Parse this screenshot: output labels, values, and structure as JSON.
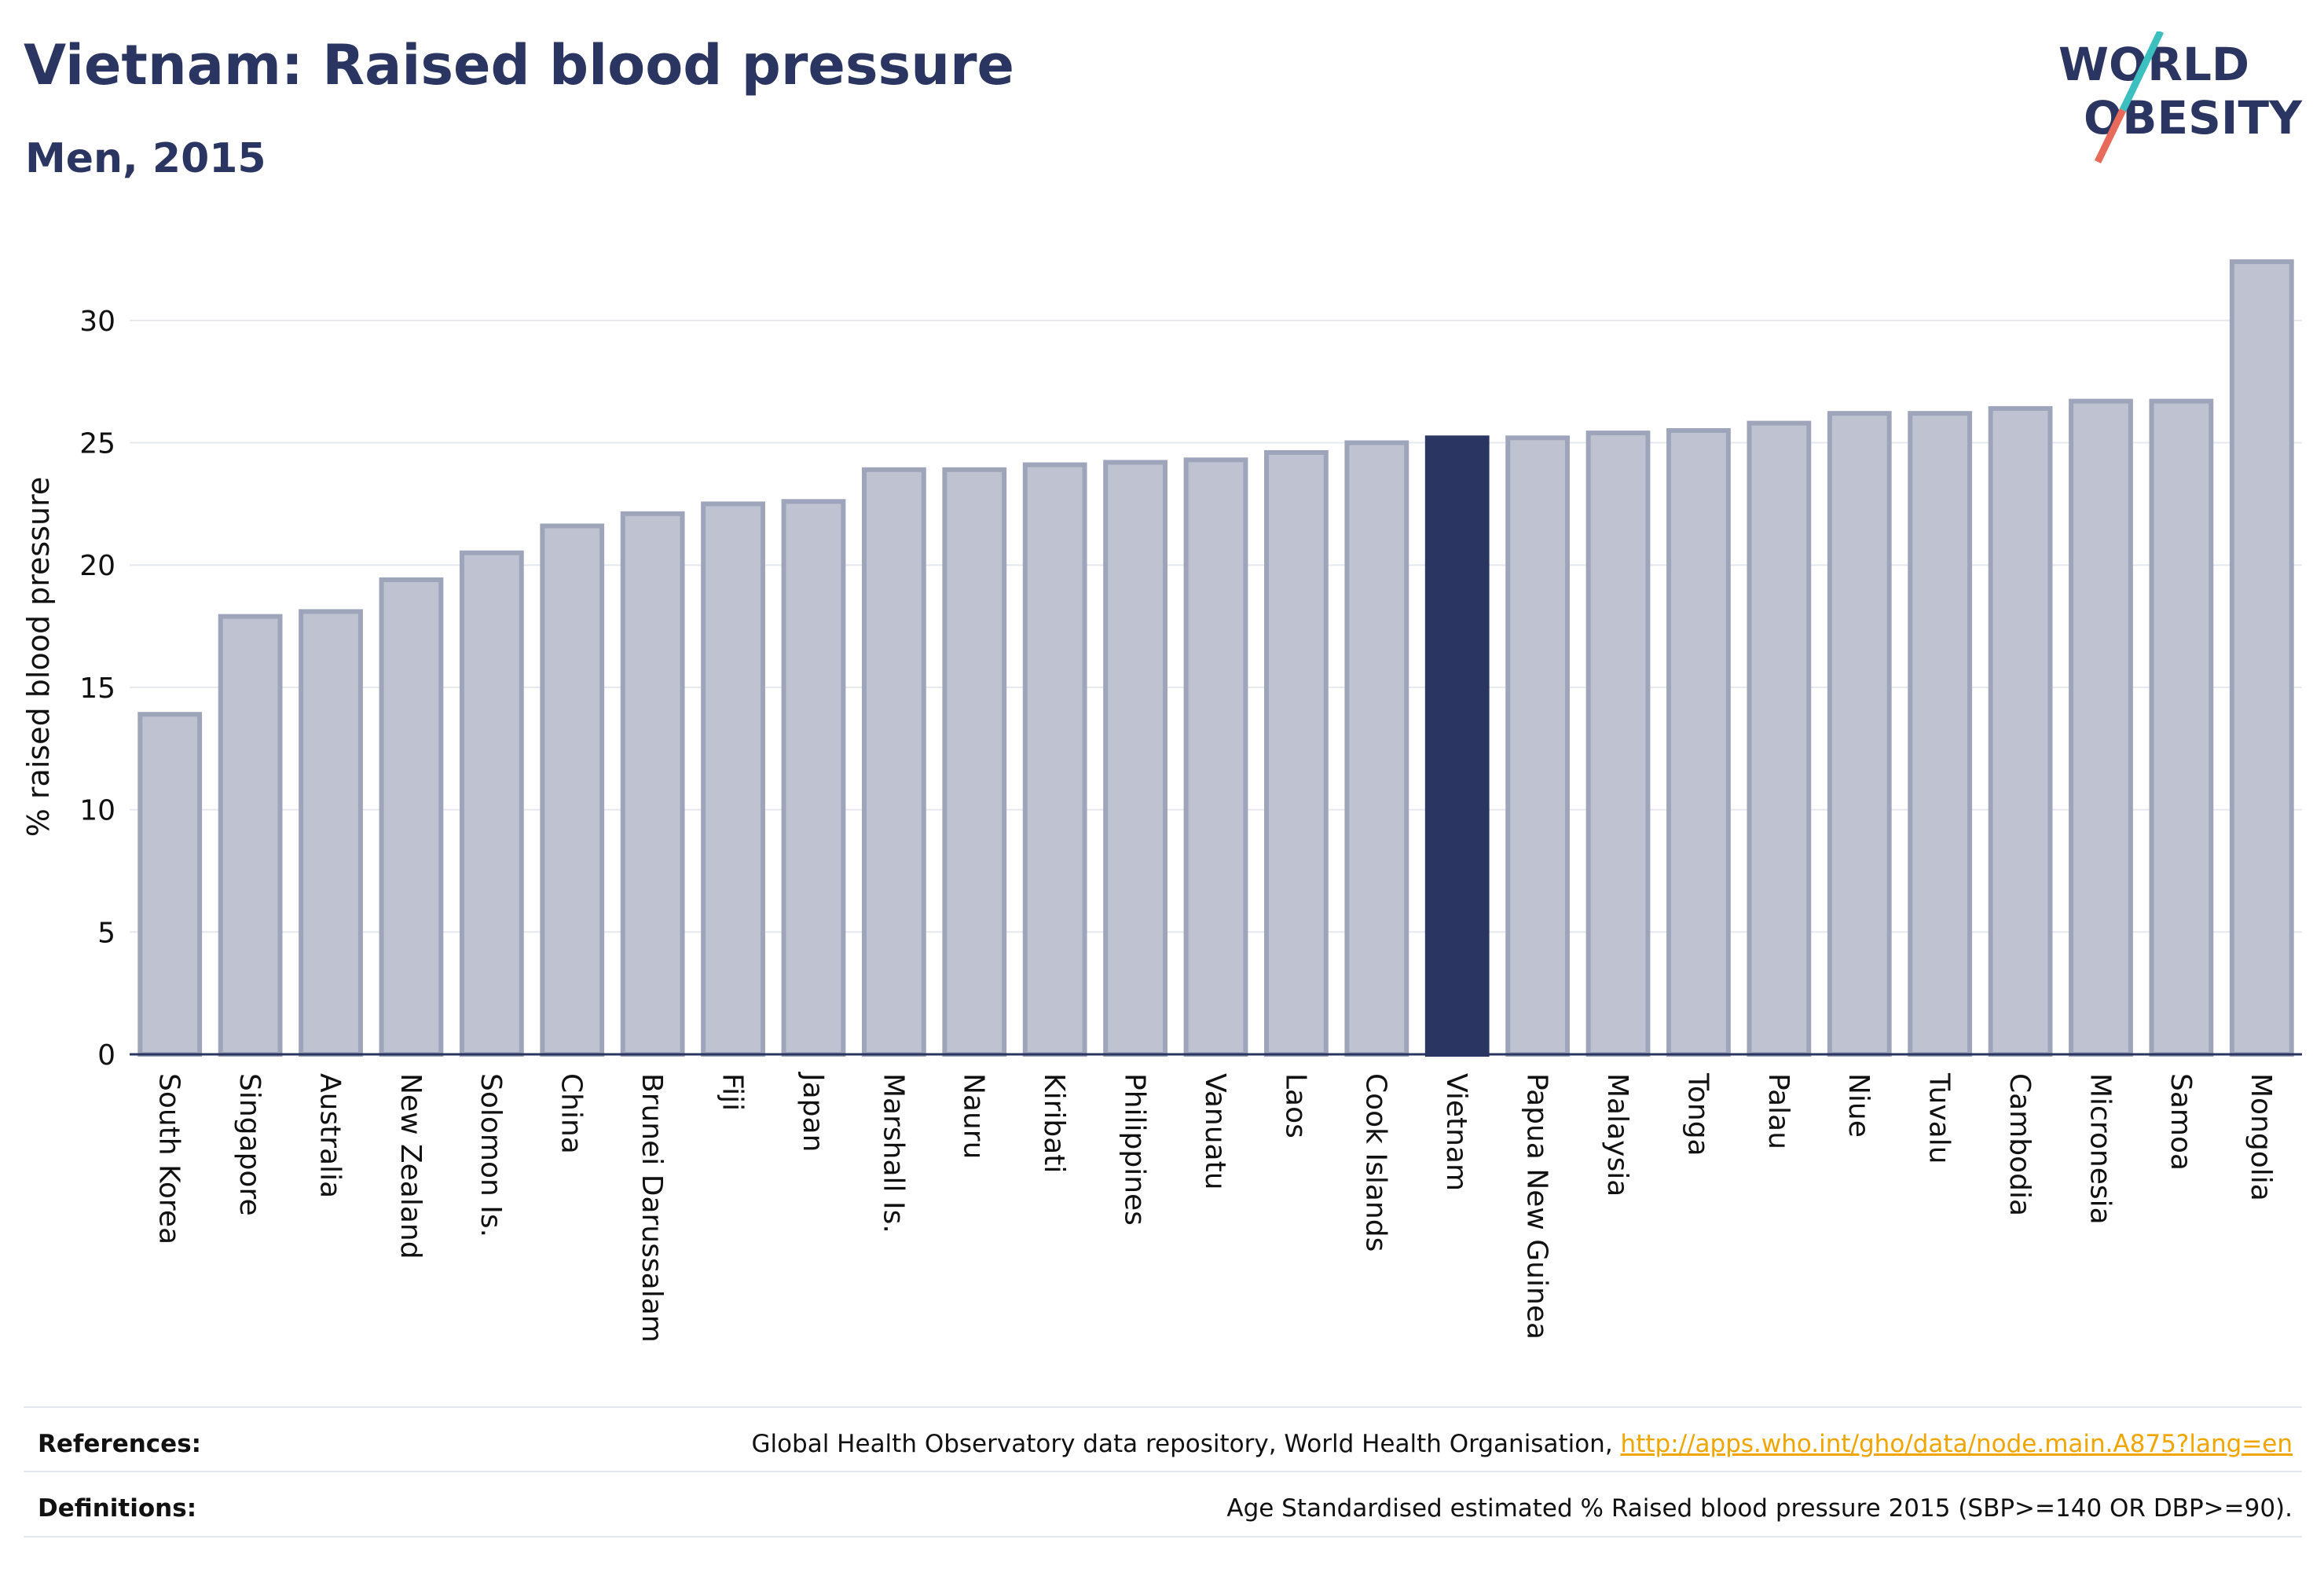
{
  "header": {
    "title": "Vietnam: Raised blood pressure",
    "subtitle": "Men, 2015"
  },
  "logo": {
    "line1": "WORLD",
    "line2": "OBESITY",
    "slash_colors": [
      "#3bbfbf",
      "#e86a5a"
    ]
  },
  "colors": {
    "bar_default": "#bfc3d1",
    "bar_border": "#9ea4ba",
    "bar_highlight": "#2a3561",
    "text_dark": "#2a3561",
    "link": "#f0a500"
  },
  "chart_data": {
    "type": "bar",
    "ylabel": "% raised blood pressure",
    "xlabel": "",
    "ylim": [
      0,
      32.5
    ],
    "yticks": [
      0,
      5,
      10,
      15,
      20,
      25,
      30
    ],
    "grid": true,
    "highlight": "Vietnam",
    "categories": [
      "South Korea",
      "Singapore",
      "Australia",
      "New Zealand",
      "Solomon Is.",
      "China",
      "Brunei Darussalam",
      "Fiji",
      "Japan",
      "Marshall Is.",
      "Nauru",
      "Kiribati",
      "Philippines",
      "Vanuatu",
      "Laos",
      "Cook Islands",
      "Vietnam",
      "Papua New Guinea",
      "Malaysia",
      "Tonga",
      "Palau",
      "Niue",
      "Tuvalu",
      "Cambodia",
      "Micronesia",
      "Samoa",
      "Mongolia"
    ],
    "values": [
      13.9,
      17.9,
      18.1,
      19.4,
      20.5,
      21.6,
      22.1,
      22.5,
      22.6,
      23.9,
      23.9,
      24.1,
      24.2,
      24.3,
      24.6,
      25.0,
      25.2,
      25.2,
      25.4,
      25.5,
      25.8,
      26.2,
      26.2,
      26.4,
      26.7,
      26.7,
      32.4
    ]
  },
  "footer": {
    "references_label": "References:",
    "references_text": "Global Health Observatory data repository, World Health Organisation, ",
    "references_link": "http://apps.who.int/gho/data/node.main.A875?lang=en",
    "definitions_label": "Definitions:",
    "definitions_text": "Age Standardised estimated % Raised blood pressure 2015 (SBP>=140 OR DBP>=90)."
  }
}
